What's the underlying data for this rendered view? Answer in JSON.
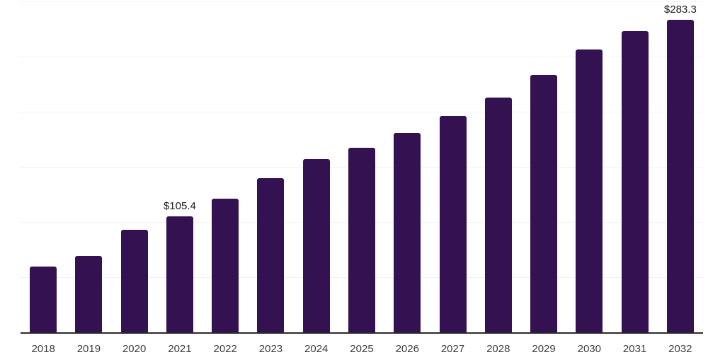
{
  "chart_data": {
    "type": "bar",
    "title": "",
    "xlabel": "",
    "ylabel": "",
    "categories": [
      "2018",
      "2019",
      "2020",
      "2021",
      "2022",
      "2023",
      "2024",
      "2025",
      "2026",
      "2027",
      "2028",
      "2029",
      "2030",
      "2031",
      "2032"
    ],
    "values": [
      59.3,
      69.2,
      93.1,
      105.4,
      121.0,
      140.0,
      157.0,
      167.6,
      180.7,
      196.0,
      213.1,
      233.3,
      256.7,
      273.3,
      283.3
    ],
    "ylim": [
      0,
      300
    ],
    "gridline_step": 50,
    "grid": true,
    "legend": false,
    "y_tick_labels_visible": false,
    "annotations": [
      {
        "category": "2021",
        "text": "$105.4"
      },
      {
        "category": "2032",
        "text": "$283.3"
      }
    ],
    "colors": {
      "bar": "#341150",
      "axis_line": "#2a2a2a",
      "gridline": "#f2f2f2",
      "tick_label": "#3d3d3d",
      "data_label": "#1c1c1c",
      "background": "#ffffff"
    }
  }
}
